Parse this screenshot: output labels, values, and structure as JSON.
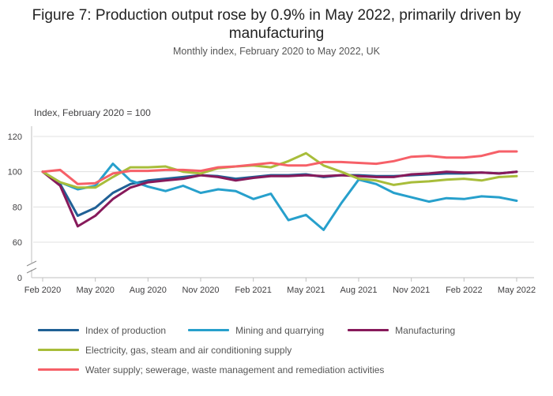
{
  "title": "Figure 7: Production output rose by 0.9% in May 2022, primarily driven by manufacturing",
  "subtitle": "Monthly index, February 2020 to May 2022, UK",
  "chart_data": {
    "type": "line",
    "ylabel": "Index, February 2020 = 100",
    "ylim": [
      0,
      130
    ],
    "yticks": [
      0,
      60,
      80,
      100,
      120
    ],
    "axis_break": [
      0,
      60
    ],
    "x": [
      "Feb 2020",
      "Mar 2020",
      "Apr 2020",
      "May 2020",
      "Jun 2020",
      "Jul 2020",
      "Aug 2020",
      "Sep 2020",
      "Oct 2020",
      "Nov 2020",
      "Dec 2020",
      "Jan 2021",
      "Feb 2021",
      "Mar 2021",
      "Apr 2021",
      "May 2021",
      "Jun 2021",
      "Jul 2021",
      "Aug 2021",
      "Sep 2021",
      "Oct 2021",
      "Nov 2021",
      "Dec 2021",
      "Jan 2022",
      "Feb 2022",
      "Mar 2022",
      "Apr 2022",
      "May 2022"
    ],
    "xtick_labels": [
      "Feb 2020",
      "May 2020",
      "Aug 2020",
      "Nov 2020",
      "Feb 2021",
      "May 2021",
      "Aug 2021",
      "Nov 2021",
      "Feb 2022",
      "May 2022"
    ],
    "grid": true,
    "legend_position": "bottom",
    "series": [
      {
        "name": "Index of production",
        "color": "#206095",
        "values": [
          100,
          93,
          75,
          79.5,
          88,
          93,
          95,
          96,
          97,
          98,
          97.5,
          96,
          97,
          98,
          98,
          98.5,
          97,
          98,
          98,
          97.5,
          97.5,
          98,
          98.5,
          99,
          99,
          99.5,
          99,
          100
        ]
      },
      {
        "name": "Mining and quarrying",
        "color": "#27a0cc",
        "values": [
          100,
          94,
          90,
          92,
          104.5,
          95,
          91.5,
          89,
          92,
          88,
          90,
          89,
          84.5,
          87.5,
          72.5,
          75.5,
          67,
          82,
          95.5,
          93,
          88,
          85.5,
          83,
          85,
          84.5,
          86,
          85.5,
          83.5
        ]
      },
      {
        "name": "Manufacturing",
        "color": "#871a5b",
        "values": [
          100,
          92,
          69,
          75,
          84.5,
          91,
          94,
          95,
          96,
          98,
          97,
          95,
          96.5,
          97.5,
          97.5,
          98,
          97.5,
          98,
          97.5,
          97,
          97,
          98.5,
          99,
          100,
          99.5,
          99.5,
          99,
          100
        ]
      },
      {
        "name": "Electricity, gas, steam and air conditioning supply",
        "color": "#a8bd3a",
        "values": [
          100,
          94,
          91,
          91,
          97,
          102.5,
          102.5,
          103,
          100,
          99,
          102,
          103,
          103.5,
          102.5,
          106,
          110.5,
          103.5,
          100,
          96,
          95,
          92.5,
          94,
          94.5,
          95.5,
          96,
          95,
          97,
          97.5
        ]
      },
      {
        "name": "Water supply; sewerage, waste management and remediation activities",
        "color": "#f66068",
        "values": [
          100,
          101,
          93,
          93.5,
          99,
          100.5,
          100.5,
          101,
          101,
          100.5,
          102.5,
          103,
          104,
          105,
          103.5,
          103.5,
          105.5,
          105.5,
          105,
          104.5,
          106,
          108.5,
          109,
          108,
          108,
          109,
          111.5,
          111.5
        ]
      }
    ]
  }
}
